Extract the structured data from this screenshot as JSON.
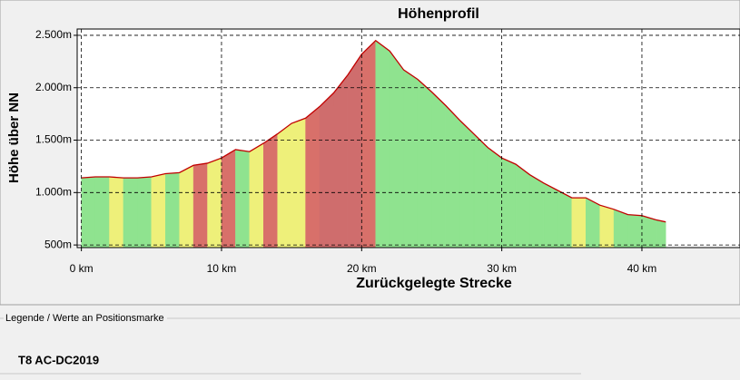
{
  "chart_data": {
    "type": "area",
    "title": "Höhenprofil",
    "xlabel": "Zurückgelegte Strecke",
    "ylabel": "Höhe über NN",
    "x": [
      0,
      1,
      2,
      3,
      4,
      5,
      6,
      7,
      8,
      9,
      10,
      11,
      12,
      13,
      14,
      15,
      16,
      17,
      18,
      19,
      20,
      21,
      22,
      23,
      24,
      25,
      26,
      27,
      28,
      29,
      30,
      31,
      32,
      33,
      34,
      35,
      36,
      37,
      38,
      39,
      40,
      41,
      41.7
    ],
    "series": [
      {
        "color": "#c00000",
        "values": [
          1140,
          1150,
          1150,
          1140,
          1140,
          1150,
          1180,
          1190,
          1260,
          1280,
          1330,
          1410,
          1390,
          1470,
          1560,
          1660,
          1710,
          1820,
          1950,
          2120,
          2320,
          2450,
          2350,
          2170,
          2080,
          1960,
          1830,
          1690,
          1560,
          1430,
          1330,
          1270,
          1170,
          1090,
          1020,
          950,
          950,
          880,
          840,
          790,
          780,
          740,
          720
        ],
        "segment_colors": [
          "#8fe38f",
          "#8fe38f",
          "#eef07a",
          "#8fe38f",
          "#8fe38f",
          "#eef07a",
          "#8fe38f",
          "#eef07a",
          "#d8706a",
          "#eef07a",
          "#d8706a",
          "#8fe38f",
          "#eef07a",
          "#d8706a",
          "#eef07a",
          "#eef07a",
          "#d8706a",
          "#cf6d6d",
          "#cf6d6d",
          "#cf6d6d",
          "#d8706a",
          "#8fe38f",
          "#8fe38f",
          "#8fe38f",
          "#8fe38f",
          "#8fe38f",
          "#8fe38f",
          "#8fe38f",
          "#8fe38f",
          "#8fe38f",
          "#8fe38f",
          "#8fe38f",
          "#8fe38f",
          "#8fe38f",
          "#8fe38f",
          "#eef07a",
          "#8fe38f",
          "#eef07a",
          "#8fe38f",
          "#8fe38f",
          "#8fe38f",
          "#8fe38f"
        ]
      }
    ],
    "xlim": [
      -0.3,
      47
    ],
    "ylim": [
      475,
      2560
    ],
    "xticks": [
      {
        "value": 0,
        "label": "0 km"
      },
      {
        "value": 10,
        "label": "10 km"
      },
      {
        "value": 20,
        "label": "20 km"
      },
      {
        "value": 30,
        "label": "30 km"
      },
      {
        "value": 40,
        "label": "40 km"
      }
    ],
    "yticks": [
      {
        "value": 500,
        "label": "500m"
      },
      {
        "value": 1000,
        "label": "1.000m"
      },
      {
        "value": 1500,
        "label": "1.500m"
      },
      {
        "value": 2000,
        "label": "2.000m"
      },
      {
        "value": 2500,
        "label": "2.500m"
      }
    ],
    "grid": true
  },
  "panel": {
    "title": "Legende / Werte an Positionsmarke",
    "track": "T8 AC-DC2019"
  }
}
